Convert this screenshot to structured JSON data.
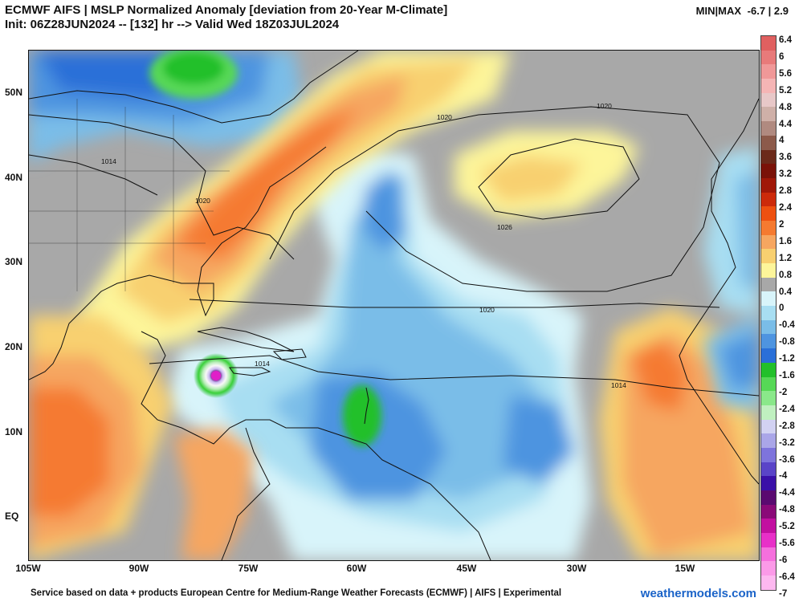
{
  "header": {
    "title": "ECMWF AIFS | MSLP Normalized Anomaly [deviation from 20-Year M-Climate]",
    "subtitle": "Init: 06Z28JUN2024 -- [132] hr --> Valid Wed 18Z03JUL2024",
    "minmax_label": "MIN|MAX",
    "minmax_value": "-6.7 | 2.9"
  },
  "map": {
    "lat_labels": [
      "50N",
      "40N",
      "30N",
      "20N",
      "10N",
      "EQ"
    ],
    "lon_labels": [
      "105W",
      "90W",
      "75W",
      "60W",
      "45W",
      "30W",
      "15W"
    ],
    "contour_labels": [
      "1020",
      "1020",
      "1026",
      "1020",
      "1014",
      "1014",
      "1014",
      "1020"
    ]
  },
  "colorbar": {
    "labels": [
      "6.4",
      "6",
      "5.6",
      "5.2",
      "4.8",
      "4.4",
      "4",
      "3.6",
      "3.2",
      "2.8",
      "2.4",
      "2",
      "1.6",
      "1.2",
      "0.8",
      "0.4",
      "0",
      "-0.4",
      "-0.8",
      "-1.2",
      "-1.6",
      "-2",
      "-2.4",
      "-2.8",
      "-3.2",
      "-3.6",
      "-4",
      "-4.4",
      "-4.8",
      "-5.2",
      "-5.6",
      "-6",
      "-6.4",
      "-7"
    ],
    "colors": [
      "#e06060",
      "#e87a7a",
      "#f09898",
      "#f5b5b5",
      "#e8c8c8",
      "#cfb0a8",
      "#b08a80",
      "#8c5a4a",
      "#6b2a1a",
      "#7a1208",
      "#a01808",
      "#cc2a0a",
      "#ee5010",
      "#f57a30",
      "#f6a660",
      "#f8d070",
      "#fdf59a",
      "#a8a8a8",
      "#d8f4fa",
      "#a8def2",
      "#7abde8",
      "#4e94e0",
      "#2a6fd8",
      "#22c02a",
      "#56d856",
      "#8ae88a",
      "#c0f0c0",
      "#d2d2f2",
      "#aaa6e8",
      "#7e74dc",
      "#5a44c8",
      "#3a10a8",
      "#5a0a70",
      "#8a0a78",
      "#c210a0",
      "#e830c8",
      "#f570dd",
      "#fb9ae8",
      "#fdb8f0"
    ]
  },
  "footer": {
    "credit": "Service based on data + products European Centre for Medium-Range Weather Forecasts (ECMWF) | AIFS | Experimental",
    "brand": "weathermodels.com"
  }
}
